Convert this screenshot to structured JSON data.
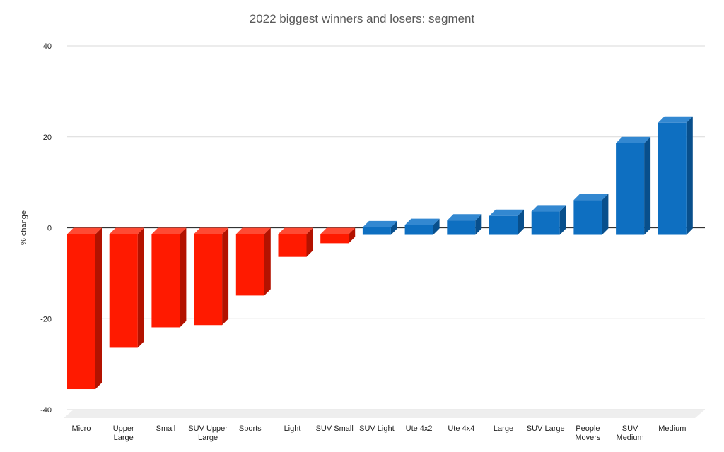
{
  "chart_data": {
    "type": "bar",
    "title": "2022 biggest winners and losers: segment",
    "ylabel": "% change",
    "xlabel": "",
    "ylim": [
      -40,
      40
    ],
    "yticks": [
      40,
      20,
      0,
      -20,
      -40
    ],
    "grid": true,
    "legend": "none",
    "categories": [
      "Micro",
      "Upper Large",
      "Small",
      "SUV Upper Large",
      "Sports",
      "Light",
      "SUV Small",
      "SUV Light",
      "Ute 4x2",
      "Ute 4x4",
      "Large",
      "SUV Large",
      "People Movers",
      "SUV Medium",
      "Medium"
    ],
    "category_lines": [
      [
        "Micro"
      ],
      [
        "Upper",
        "Large"
      ],
      [
        "Small"
      ],
      [
        "SUV Upper",
        "Large"
      ],
      [
        "Sports"
      ],
      [
        "Light"
      ],
      [
        "SUV Small"
      ],
      [
        "SUV Light"
      ],
      [
        "Ute 4x2"
      ],
      [
        "Ute 4x4"
      ],
      [
        "Large"
      ],
      [
        "SUV Large"
      ],
      [
        "People",
        "Movers"
      ],
      [
        "SUV",
        "Medium"
      ],
      [
        "Medium"
      ]
    ],
    "values": [
      -34.1,
      -25.0,
      -20.5,
      -20.0,
      -13.5,
      -5.0,
      -2.0,
      1.5,
      2.0,
      3.0,
      4.0,
      5.0,
      7.5,
      20.0,
      24.5
    ],
    "colors": {
      "negative": "#ff1a00",
      "negative_side": "#b31200",
      "negative_top": "#ff4a33",
      "positive": "#0e6fc1",
      "positive_side": "#084f8c",
      "positive_top": "#3388d1",
      "gridline": "#d9d9d9",
      "zero_line": "#333333",
      "floor": "#eeeeee"
    }
  }
}
